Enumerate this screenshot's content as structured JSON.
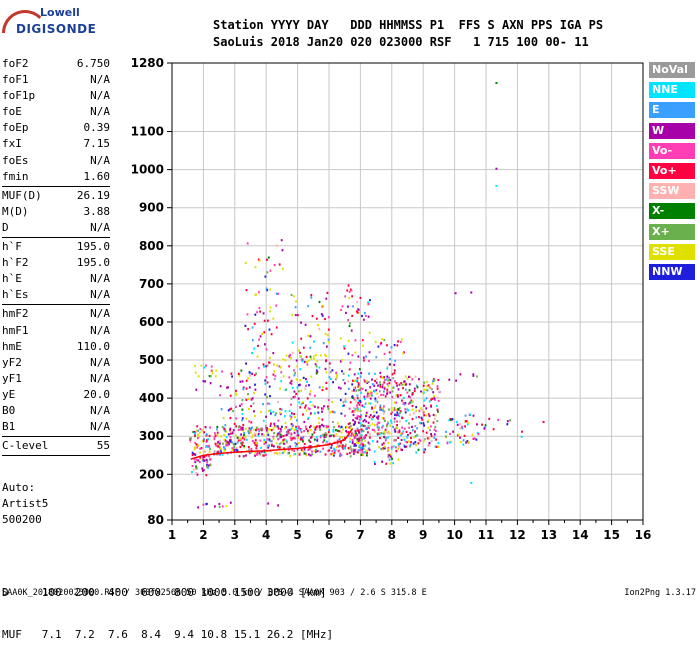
{
  "logo": {
    "line1": "Lowell",
    "line2": "DIGISONDE"
  },
  "header": {
    "labels": "Station YYYY DAY   DDD HHMMSS P1  FFS S AXN PPS IGA PS",
    "values": "SaoLuis 2018 Jan20 020 023000 RSF   1 715 100 00- 11"
  },
  "params_a": [
    {
      "name": "foF2",
      "value": "6.750"
    },
    {
      "name": "foF1",
      "value": "N/A"
    },
    {
      "name": "foF1p",
      "value": "N/A"
    },
    {
      "name": "foE",
      "value": "N/A"
    },
    {
      "name": "foEp",
      "value": "0.39"
    },
    {
      "name": "fxI",
      "value": "7.15"
    },
    {
      "name": "foEs",
      "value": "N/A"
    },
    {
      "name": "fmin",
      "value": "1.60"
    }
  ],
  "params_b": [
    {
      "name": "MUF(D)",
      "value": "26.19"
    },
    {
      "name": "M(D)",
      "value": "3.88"
    },
    {
      "name": "D",
      "value": "N/A"
    }
  ],
  "params_c": [
    {
      "name": "h`F",
      "value": "195.0"
    },
    {
      "name": "h`F2",
      "value": "195.0"
    },
    {
      "name": "h`E",
      "value": "N/A"
    },
    {
      "name": "h`Es",
      "value": "N/A"
    }
  ],
  "params_d": [
    {
      "name": "hmF2",
      "value": "N/A"
    },
    {
      "name": "hmF1",
      "value": "N/A"
    },
    {
      "name": "hmE",
      "value": "110.0"
    },
    {
      "name": "yF2",
      "value": "N/A"
    },
    {
      "name": "yF1",
      "value": "N/A"
    },
    {
      "name": "yE",
      "value": "20.0"
    },
    {
      "name": "B0",
      "value": "N/A"
    },
    {
      "name": "B1",
      "value": "N/A"
    }
  ],
  "params_e": [
    {
      "name": "C-level",
      "value": "55"
    }
  ],
  "autoscale": {
    "line1": "Auto:",
    "line2": "Artist5",
    "line3": "500200"
  },
  "legend": [
    {
      "label": "NoVal",
      "color": "#9a9a9a"
    },
    {
      "label": "NNE",
      "color": "#00e5ff"
    },
    {
      "label": "E",
      "color": "#3aa0ff"
    },
    {
      "label": "W",
      "color": "#a800a8"
    },
    {
      "label": "Vo-",
      "color": "#ff3db4"
    },
    {
      "label": "Vo+",
      "color": "#ff0040"
    },
    {
      "label": "SSW",
      "color": "#ffb0b0"
    },
    {
      "label": "X-",
      "color": "#008000"
    },
    {
      "label": "X+",
      "color": "#6ab04c"
    },
    {
      "label": "SSE",
      "color": "#e0e000"
    },
    {
      "label": "NNW",
      "color": "#1e1edc"
    }
  ],
  "muf_table": {
    "d_row": "D     100  200  400  600  800 1000 1500 3000 [km]",
    "muf_row": "MUF   7.1  7.2  7.6  8.4  9.4 10.8 15.1 26.2 [MHz]"
  },
  "footer": "SAA0K_2018020023000.RSF / 300fx256h 50 kHz 5.0 km / DPS-4 SAA0K 903 / 2.6 S 315.8 E",
  "version": "Ion2Png 1.3.17",
  "chart_data": {
    "type": "scatter",
    "xlabel": "",
    "ylabel": "",
    "xlim": [
      1,
      16
    ],
    "ylim": [
      80,
      1280
    ],
    "x_ticks": [
      "1",
      "2",
      "3",
      "4",
      "5",
      "6",
      "7",
      "8",
      "9",
      "10",
      "11",
      "12",
      "13",
      "14",
      "15",
      "16"
    ],
    "y_ticks": [
      {
        "v": 80,
        "label": "80"
      },
      {
        "v": 200,
        "label": "200"
      },
      {
        "v": 300,
        "label": "300"
      },
      {
        "v": 400,
        "label": "400"
      },
      {
        "v": 500,
        "label": "500"
      },
      {
        "v": 600,
        "label": "600"
      },
      {
        "v": 700,
        "label": "700"
      },
      {
        "v": 800,
        "label": "800"
      },
      {
        "v": 900,
        "label": "900"
      },
      {
        "v": 1000,
        "label": "1000"
      },
      {
        "v": 1100,
        "label": "1100"
      },
      {
        "v": 1280,
        "label": "1280"
      }
    ],
    "grid": true,
    "trace": {
      "name": "",
      "color": "#ff0000",
      "x": [
        1.6,
        2.0,
        2.5,
        3.0,
        3.5,
        4.0,
        4.5,
        5.0,
        5.5,
        6.0,
        6.5,
        6.75
      ],
      "y": [
        240,
        250,
        255,
        258,
        260,
        262,
        265,
        268,
        272,
        278,
        290,
        320
      ]
    },
    "clusters": [
      {
        "x": [
          1.55,
          2.2
        ],
        "y": [
          200,
          330
        ],
        "density": 6
      },
      {
        "x": [
          1.7,
          2.5
        ],
        "y": [
          460,
          490
        ],
        "density": 3,
        "dominant": "SSE"
      },
      {
        "x": [
          1.7,
          3.5
        ],
        "y": [
          420,
          450
        ],
        "density": 0.7,
        "dominant": "W"
      },
      {
        "x": [
          2.3,
          7.2
        ],
        "y": [
          250,
          330
        ],
        "density": 7
      },
      {
        "x": [
          2.5,
          7.0
        ],
        "y": [
          330,
          480
        ],
        "density": 1.2
      },
      {
        "x": [
          3.3,
          4.5
        ],
        "y": [
          300,
          820
        ],
        "density": 0.9
      },
      {
        "x": [
          4.7,
          6.0
        ],
        "y": [
          300,
          680
        ],
        "density": 1.1
      },
      {
        "x": [
          6.3,
          7.3
        ],
        "y": [
          280,
          700
        ],
        "density": 1.2
      },
      {
        "x": [
          4.5,
          6.0
        ],
        "y": [
          490,
          520
        ],
        "density": 2.5,
        "dominant": "SSE"
      },
      {
        "x": [
          6.7,
          9.5
        ],
        "y": [
          260,
          460
        ],
        "density": 4
      },
      {
        "x": [
          7.4,
          8.4
        ],
        "y": [
          230,
          560
        ],
        "density": 1.6
      },
      {
        "x": [
          9.6,
          10.8
        ],
        "y": [
          280,
          360
        ],
        "density": 2.5
      },
      {
        "x": [
          9.8,
          10.7
        ],
        "y": [
          440,
          470
        ],
        "density": 1.2,
        "dominant": "W"
      },
      {
        "x": [
          10.8,
          11.8
        ],
        "y": [
          320,
          360
        ],
        "density": 1.2
      },
      {
        "x": [
          11.8,
          12.5
        ],
        "y": [
          300,
          320
        ],
        "density": 0.8
      },
      {
        "x": [
          1.8,
          4.4
        ],
        "y": [
          115,
          130
        ],
        "density": 1.5,
        "dominant": "W"
      }
    ],
    "isolated": [
      {
        "x": 11.3,
        "y": 1230,
        "c": "X-"
      },
      {
        "x": 11.3,
        "y": 1005,
        "c": "W"
      },
      {
        "x": 11.3,
        "y": 960,
        "c": "NNE"
      },
      {
        "x": 10.0,
        "y": 678,
        "c": "W"
      },
      {
        "x": 10.5,
        "y": 680,
        "c": "W"
      },
      {
        "x": 12.8,
        "y": 340,
        "c": "Vo+"
      },
      {
        "x": 10.5,
        "y": 180,
        "c": "NNE"
      },
      {
        "x": 8.9,
        "y": 420,
        "c": "W"
      }
    ]
  }
}
